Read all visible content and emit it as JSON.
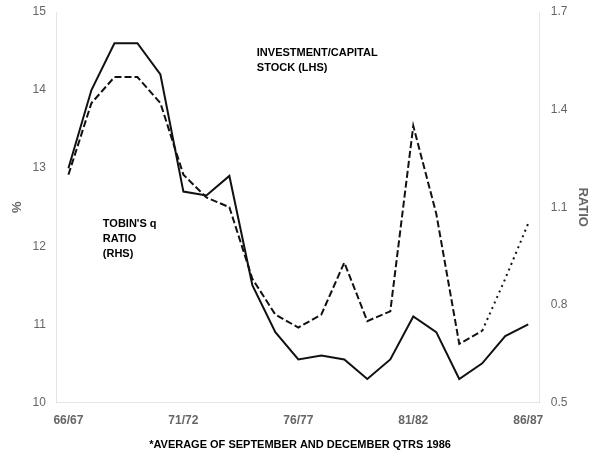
{
  "chart_data": {
    "type": "line",
    "ylabel": "%",
    "y2label": "RATIO",
    "footnote": "*AVERAGE OF SEPTEMBER AND DECEMBER QTRS 1986",
    "annotations": [
      "INVESTMENT/CAPITAL\nSTOCK (LHS)",
      "TOBIN'S q\nRATIO\n(RHS)"
    ],
    "categories": [
      "66/67",
      null,
      null,
      null,
      null,
      "71/72",
      null,
      null,
      null,
      null,
      "76/77",
      null,
      null,
      null,
      null,
      "81/82",
      null,
      null,
      null,
      null,
      "86/87"
    ],
    "ylim": [
      10,
      15
    ],
    "yticks": [
      10,
      11,
      12,
      13,
      14,
      15
    ],
    "y2lim": [
      0.5,
      1.7
    ],
    "y2ticks": [
      0.5,
      0.8,
      1.1,
      1.4,
      1.7
    ],
    "grid": false,
    "series": [
      {
        "color": "#111111",
        "line_style": "solid",
        "values": [
          13.0,
          14.0,
          14.6,
          14.6,
          14.2,
          12.7,
          12.65,
          12.9,
          11.5,
          10.9,
          10.55,
          10.6,
          10.55,
          10.3,
          10.55,
          11.1,
          10.9,
          10.3,
          10.5,
          10.85,
          11.0
        ]
      },
      {
        "color": "#111111",
        "line_style": "dashed",
        "axis": "y2",
        "values": [
          1.2,
          1.42,
          1.5,
          1.5,
          1.42,
          1.2,
          1.13,
          1.1,
          0.88,
          0.77,
          0.73,
          0.77,
          0.93,
          0.75,
          0.78,
          1.35,
          1.08,
          0.68,
          0.72,
          null,
          null
        ]
      },
      {
        "color": "#111111",
        "line_style": "dotted",
        "axis": "y2",
        "values": [
          null,
          null,
          null,
          null,
          null,
          null,
          null,
          null,
          null,
          null,
          null,
          null,
          null,
          null,
          null,
          null,
          null,
          null,
          0.72,
          0.88,
          1.05
        ]
      }
    ]
  }
}
